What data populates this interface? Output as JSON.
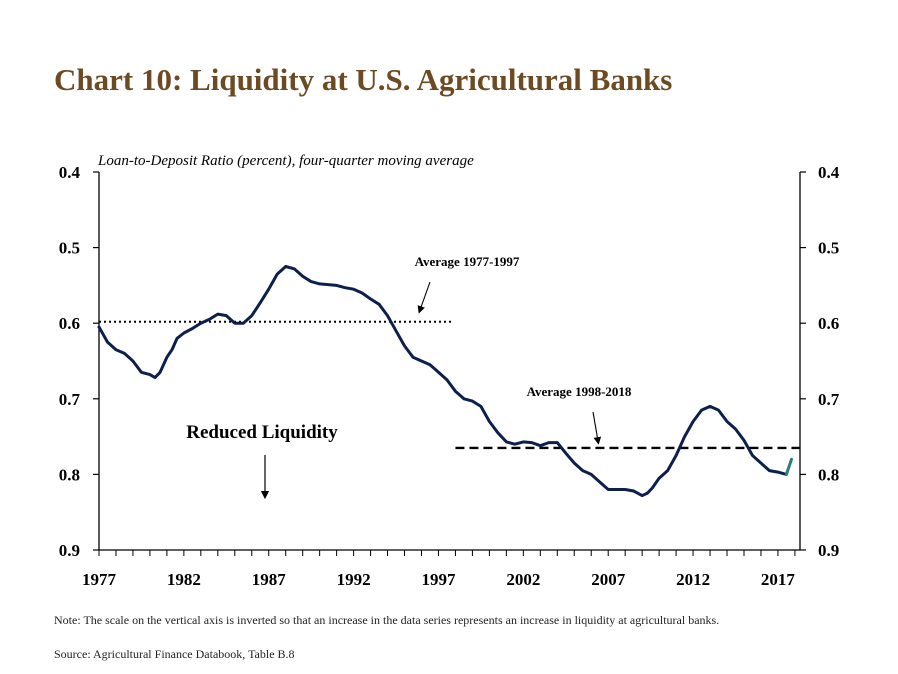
{
  "title": "Chart 10: Liquidity at U.S. Agricultural Banks",
  "note": "Note: The scale on the vertical axis is inverted so that an increase in the data series represents an increase in liquidity at agricultural banks.",
  "source": "Source: Agricultural Finance Databook, Table B.8",
  "colors": {
    "title": "#6e4a22",
    "series": "#0d1f4c",
    "last_segment": "#2e7b7b",
    "reference": "#000000"
  },
  "chart_data": {
    "type": "line",
    "subtitle": "Loan-to-Deposit Ratio (percent), four-quarter moving average",
    "y_inverted": true,
    "ylim": [
      0.4,
      0.9
    ],
    "y_ticks": [
      "0.4",
      "0.5",
      "0.6",
      "0.7",
      "0.8",
      "0.9"
    ],
    "xlim": [
      1977,
      2018.3
    ],
    "x_ticks": [
      "1977",
      "1982",
      "1987",
      "1992",
      "1997",
      "2002",
      "2007",
      "2012",
      "2017"
    ],
    "series": [
      {
        "x": [
          1977.0,
          1977.5,
          1978.0,
          1978.5,
          1979.0,
          1979.5,
          1980.0,
          1980.3,
          1980.6,
          1981.0,
          1981.3,
          1981.6,
          1982.0,
          1982.5,
          1983.0,
          1983.5,
          1984.0,
          1984.5,
          1985.0,
          1985.5,
          1986.0,
          1986.5,
          1987.0,
          1987.5,
          1988.0,
          1988.5,
          1989.0,
          1989.5,
          1990.0,
          1990.5,
          1991.0,
          1991.5,
          1992.0,
          1992.5,
          1993.0,
          1993.5,
          1994.0,
          1994.5,
          1995.0,
          1995.5,
          1996.0,
          1996.5,
          1997.0,
          1997.5,
          1998.0,
          1998.5,
          1999.0,
          1999.5,
          2000.0,
          2000.5,
          2001.0,
          2001.5,
          2002.0,
          2002.5,
          2003.0,
          2003.5,
          2004.0,
          2004.5,
          2005.0,
          2005.5,
          2006.0,
          2006.5,
          2007.0,
          2007.5,
          2008.0,
          2008.5,
          2009.0,
          2009.3,
          2009.6,
          2010.0,
          2010.5,
          2011.0,
          2011.5,
          2012.0,
          2012.5,
          2013.0,
          2013.5,
          2014.0,
          2014.5,
          2015.0,
          2015.5,
          2016.0,
          2016.5,
          2017.0,
          2017.5,
          2017.8
        ],
        "y": [
          0.605,
          0.625,
          0.635,
          0.64,
          0.65,
          0.665,
          0.668,
          0.672,
          0.665,
          0.645,
          0.635,
          0.62,
          0.613,
          0.607,
          0.6,
          0.595,
          0.588,
          0.59,
          0.6,
          0.6,
          0.59,
          0.573,
          0.555,
          0.535,
          0.525,
          0.528,
          0.538,
          0.545,
          0.548,
          0.549,
          0.55,
          0.553,
          0.555,
          0.56,
          0.568,
          0.575,
          0.59,
          0.61,
          0.63,
          0.645,
          0.65,
          0.655,
          0.665,
          0.675,
          0.69,
          0.7,
          0.703,
          0.71,
          0.73,
          0.745,
          0.757,
          0.76,
          0.757,
          0.758,
          0.762,
          0.758,
          0.758,
          0.772,
          0.785,
          0.795,
          0.8,
          0.81,
          0.82,
          0.82,
          0.82,
          0.822,
          0.828,
          0.825,
          0.818,
          0.805,
          0.795,
          0.775,
          0.75,
          0.73,
          0.715,
          0.71,
          0.715,
          0.73,
          0.74,
          0.755,
          0.775,
          0.785,
          0.795,
          0.797,
          0.8,
          0.78
        ]
      }
    ],
    "reference_lines": [
      {
        "label": "Average 1977-1997",
        "value": 0.598,
        "x_range": [
          1977,
          1997.8
        ],
        "style": "dotted"
      },
      {
        "label": "Average 1998-2018",
        "value": 0.765,
        "x_range": [
          1998,
          2018.3
        ],
        "style": "dashed"
      }
    ],
    "annotations": [
      {
        "text": "Reduced Liquidity",
        "arrow": "down"
      }
    ]
  }
}
